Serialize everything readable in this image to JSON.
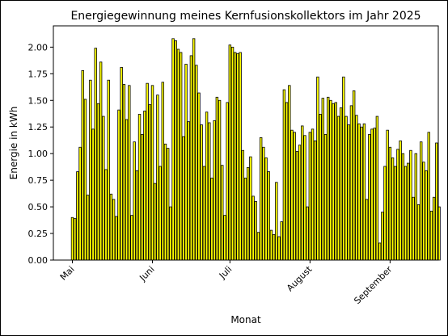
{
  "chart_data": {
    "type": "bar",
    "title": "Energiegewinnung meines Kernfusionskollektors im Jahr 2025",
    "xlabel": "Monat",
    "ylabel": "Energie in kWh",
    "ylim": [
      0,
      2.2
    ],
    "yticks": [
      0.0,
      0.25,
      0.5,
      0.75,
      1.0,
      1.25,
      1.5,
      1.75,
      2.0
    ],
    "ytick_labels": [
      "0.00",
      "0.25",
      "0.50",
      "0.75",
      "1.00",
      "1.25",
      "1.50",
      "1.75",
      "2.00"
    ],
    "xtick_labels": [
      {
        "label": "Mai",
        "date": "2025-05-01"
      },
      {
        "label": "Juni",
        "date": "2025-06-01"
      },
      {
        "label": "Juli",
        "date": "2025-07-01"
      },
      {
        "label": "August",
        "date": "2025-08-01"
      },
      {
        "label": "September",
        "date": "2025-09-01"
      }
    ],
    "x_start": "2025-05-01",
    "bar_color": "#ffff00",
    "edge_color": "#000000",
    "grid": false,
    "series": [
      {
        "values": [
          0.4,
          0.39,
          0.83,
          1.06,
          1.78,
          1.51,
          0.61,
          1.69,
          1.23,
          1.99,
          1.47,
          1.86,
          1.35,
          0.85,
          1.69,
          0.62,
          0.57,
          0.41,
          1.41,
          1.81,
          1.65,
          1.32,
          1.64,
          0.42,
          1.11,
          0.84,
          1.37,
          1.18,
          1.4,
          1.66,
          1.46,
          1.64,
          0.72,
          1.55,
          0.88,
          1.67,
          1.09,
          1.05,
          0.5,
          2.08,
          2.06,
          1.98,
          1.95,
          1.16,
          1.84,
          1.3,
          1.92,
          2.08,
          1.83,
          1.57,
          1.27,
          0.88,
          1.39,
          1.29,
          0.77,
          1.31,
          1.53,
          1.5,
          0.89,
          0.42,
          1.48,
          2.02,
          2.0,
          1.95,
          1.94,
          1.95,
          1.03,
          0.77,
          0.87,
          0.97,
          0.6,
          0.55,
          0.26,
          1.15,
          1.06,
          0.96,
          0.83,
          0.28,
          0.24,
          0.73,
          0.22,
          0.36,
          1.6,
          1.48,
          1.64,
          1.22,
          1.2,
          1.02,
          1.08,
          1.26,
          1.17,
          0.5,
          1.2,
          1.23,
          1.12,
          1.72,
          1.37,
          1.52,
          1.18,
          1.53,
          1.5,
          1.47,
          1.48,
          1.35,
          1.43,
          1.72,
          1.35,
          1.27,
          1.45,
          1.59,
          1.36,
          1.28,
          1.25,
          1.28,
          0.57,
          1.18,
          1.23,
          1.24,
          1.35,
          0.16,
          0.45,
          0.88,
          1.22,
          1.06,
          0.96,
          0.88,
          1.04,
          1.12,
          1.0,
          0.88,
          0.91,
          1.03,
          0.59,
          1.0,
          0.52,
          1.11,
          0.92,
          0.84,
          1.2,
          0.46,
          0.59,
          1.1,
          0.5
        ]
      }
    ]
  }
}
